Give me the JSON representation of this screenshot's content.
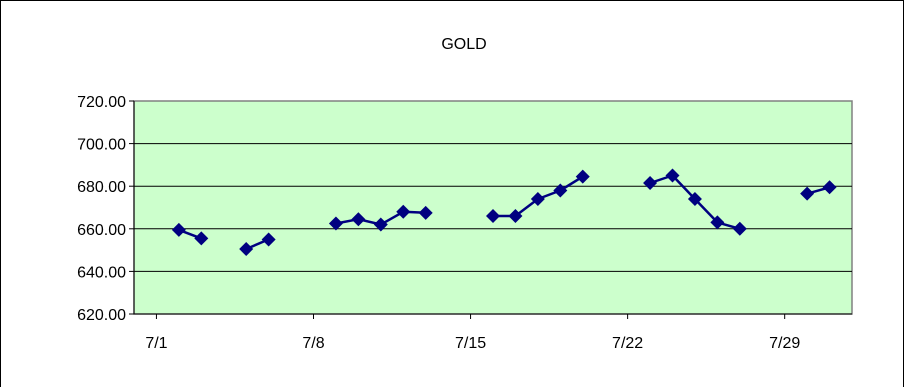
{
  "chart_data": {
    "type": "line",
    "title": "GOLD",
    "xlabel": "",
    "ylabel": "",
    "x_ticks": [
      "7/1",
      "7/8",
      "7/15",
      "7/22",
      "7/29"
    ],
    "y_ticks": [
      "620.00",
      "640.00",
      "660.00",
      "680.00",
      "700.00",
      "720.00"
    ],
    "ylim": [
      620,
      720
    ],
    "x_range": [
      "2024-06-30",
      "2024-08-01"
    ],
    "grid": true,
    "legend": "none",
    "colors": {
      "plot_background": "#ccffcc",
      "series": "#000080",
      "gridline": "#000000",
      "plot_border": "#808080"
    },
    "segments": [
      [
        {
          "date": "7/2",
          "value": 659.5
        },
        {
          "date": "7/3",
          "value": 655.5
        }
      ],
      [
        {
          "date": "7/5",
          "value": 650.5
        },
        {
          "date": "7/6",
          "value": 655.0
        }
      ],
      [
        {
          "date": "7/9",
          "value": 662.5
        },
        {
          "date": "7/10",
          "value": 664.5
        },
        {
          "date": "7/11",
          "value": 662.0
        },
        {
          "date": "7/12",
          "value": 668.0
        },
        {
          "date": "7/13",
          "value": 667.5
        }
      ],
      [
        {
          "date": "7/16",
          "value": 666.0
        },
        {
          "date": "7/17",
          "value": 666.0
        },
        {
          "date": "7/18",
          "value": 674.0
        },
        {
          "date": "7/19",
          "value": 678.0
        },
        {
          "date": "7/20",
          "value": 684.5
        }
      ],
      [
        {
          "date": "7/23",
          "value": 681.5
        },
        {
          "date": "7/24",
          "value": 685.0
        },
        {
          "date": "7/25",
          "value": 674.0
        },
        {
          "date": "7/26",
          "value": 663.0
        },
        {
          "date": "7/27",
          "value": 660.0
        }
      ],
      [
        {
          "date": "7/30",
          "value": 676.5
        },
        {
          "date": "7/31",
          "value": 679.5
        }
      ]
    ]
  }
}
